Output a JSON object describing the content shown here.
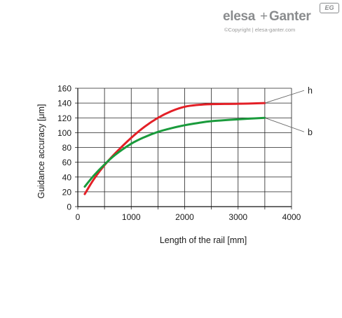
{
  "brand": {
    "logo_text_1": "elesa",
    "logo_plus": "+",
    "logo_text_2": "Ganter",
    "badge": "EG",
    "copyright": "©Copyright | elesa-ganter.com",
    "color": "#8a8c8e"
  },
  "chart_data": {
    "type": "line",
    "xlabel": "Length of the rail [mm]",
    "ylabel": "Guidance accuracy [μm]",
    "xlim": [
      0,
      4000
    ],
    "ylim": [
      0,
      160
    ],
    "xticks": [
      0,
      1000,
      2000,
      3000,
      4000
    ],
    "yticks": [
      0,
      20,
      40,
      60,
      80,
      100,
      120,
      140,
      160
    ],
    "x_grid_step": 500,
    "grid": true,
    "series": [
      {
        "name": "h",
        "color": "#e31f26",
        "points": [
          [
            130,
            17
          ],
          [
            300,
            37
          ],
          [
            500,
            56
          ],
          [
            700,
            72
          ],
          [
            1000,
            93
          ],
          [
            1250,
            108
          ],
          [
            1500,
            120
          ],
          [
            1750,
            129
          ],
          [
            2000,
            135
          ],
          [
            2250,
            137.5
          ],
          [
            2500,
            138.5
          ],
          [
            3000,
            139
          ],
          [
            3500,
            140
          ]
        ]
      },
      {
        "name": "b",
        "color": "#1a9b3c",
        "points": [
          [
            130,
            27
          ],
          [
            300,
            42
          ],
          [
            500,
            57
          ],
          [
            700,
            70
          ],
          [
            1000,
            85
          ],
          [
            1250,
            94
          ],
          [
            1500,
            101
          ],
          [
            1750,
            106
          ],
          [
            2000,
            110
          ],
          [
            2250,
            113
          ],
          [
            2500,
            115.5
          ],
          [
            3000,
            118
          ],
          [
            3500,
            120
          ]
        ]
      }
    ]
  }
}
